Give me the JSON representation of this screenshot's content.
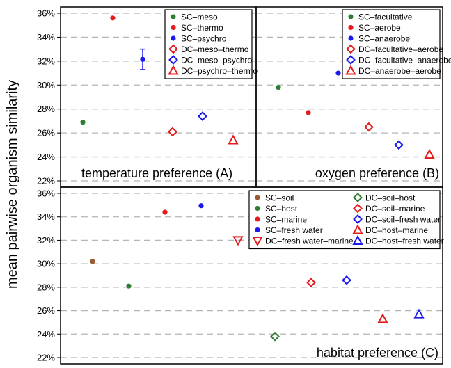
{
  "chart_data": {
    "type": "scatter",
    "ylabel": "mean pairwise organism similarity",
    "panels": [
      {
        "label": "temperature preference (A)",
        "ylim": [
          22,
          36
        ],
        "yticks": [
          "22%",
          "24%",
          "26%",
          "28%",
          "30%",
          "32%",
          "34%",
          "36%"
        ],
        "grid": true,
        "legend_position": "top-right",
        "series": [
          {
            "name": "SC–meso",
            "marker": "dot",
            "color": "#2e7d32",
            "x": 1,
            "y": 26.9
          },
          {
            "name": "SC–thermo",
            "marker": "dot",
            "color": "#e41a1c",
            "x": 2,
            "y": 35.6
          },
          {
            "name": "SC–psychro",
            "marker": "dot",
            "color": "#1a1aee",
            "x": 3,
            "y": 32.15,
            "error": [
              31.3,
              33.0
            ]
          },
          {
            "name": "DC–meso–thermo",
            "marker": "diamond",
            "color": "#e41a1c",
            "x": 4,
            "y": 26.1
          },
          {
            "name": "DC–meso–psychro",
            "marker": "diamond",
            "color": "#1a1aee",
            "x": 5,
            "y": 27.4
          },
          {
            "name": "DC–psychro–thermo",
            "marker": "triangle-up",
            "color": "#e41a1c",
            "x": 6,
            "y": 25.4
          }
        ]
      },
      {
        "label": "oxygen preference (B)",
        "ylim": [
          22,
          36
        ],
        "grid": true,
        "legend_position": "top-right",
        "series": [
          {
            "name": "SC–facultative",
            "marker": "dot",
            "color": "#2e7d32",
            "x": 1,
            "y": 29.8
          },
          {
            "name": "SC–aerobe",
            "marker": "dot",
            "color": "#e41a1c",
            "x": 2,
            "y": 27.7
          },
          {
            "name": "SC–anaerobe",
            "marker": "dot",
            "color": "#1a1aee",
            "x": 3,
            "y": 31.0
          },
          {
            "name": "DC–facultative–aerobe",
            "marker": "diamond",
            "color": "#e41a1c",
            "x": 4,
            "y": 26.5
          },
          {
            "name": "DC–facultative–anaerobe",
            "marker": "diamond",
            "color": "#1a1aee",
            "x": 5,
            "y": 25.0
          },
          {
            "name": "DC–anaerobe–aerobe",
            "marker": "triangle-up",
            "color": "#e41a1c",
            "x": 6,
            "y": 24.2
          }
        ]
      },
      {
        "label": "habitat preference (C)",
        "ylim": [
          22,
          36
        ],
        "yticks": [
          "22%",
          "24%",
          "26%",
          "28%",
          "30%",
          "32%",
          "34%",
          "36%"
        ],
        "grid": true,
        "legend_position": "top-right",
        "series": [
          {
            "name": "SC–soil",
            "marker": "dot",
            "color": "#9a5a32",
            "x": 1,
            "y": 30.2
          },
          {
            "name": "SC–host",
            "marker": "dot",
            "color": "#2e7d32",
            "x": 2,
            "y": 28.1
          },
          {
            "name": "SC–marine",
            "marker": "dot",
            "color": "#e41a1c",
            "x": 3,
            "y": 34.4
          },
          {
            "name": "SC–fresh water",
            "marker": "dot",
            "color": "#1a1aee",
            "x": 4,
            "y": 34.95
          },
          {
            "name": "DC–fresh water–marine",
            "marker": "triangle-down",
            "color": "#e41a1c",
            "x": 5,
            "y": 32.0
          },
          {
            "name": "DC–soil–host",
            "marker": "diamond",
            "color": "#2e7d32",
            "x": 6,
            "y": 23.8
          },
          {
            "name": "DC–soil–marine",
            "marker": "diamond",
            "color": "#e41a1c",
            "x": 7,
            "y": 28.4
          },
          {
            "name": "DC–soil–fresh water",
            "marker": "diamond",
            "color": "#1a1aee",
            "x": 8,
            "y": 28.6
          },
          {
            "name": "DC–host–marine",
            "marker": "triangle-up",
            "color": "#e41a1c",
            "x": 9,
            "y": 25.3
          },
          {
            "name": "DC–host–fresh water",
            "marker": "triangle-up",
            "color": "#1a1aee",
            "x": 10,
            "y": 25.7
          }
        ]
      }
    ]
  }
}
